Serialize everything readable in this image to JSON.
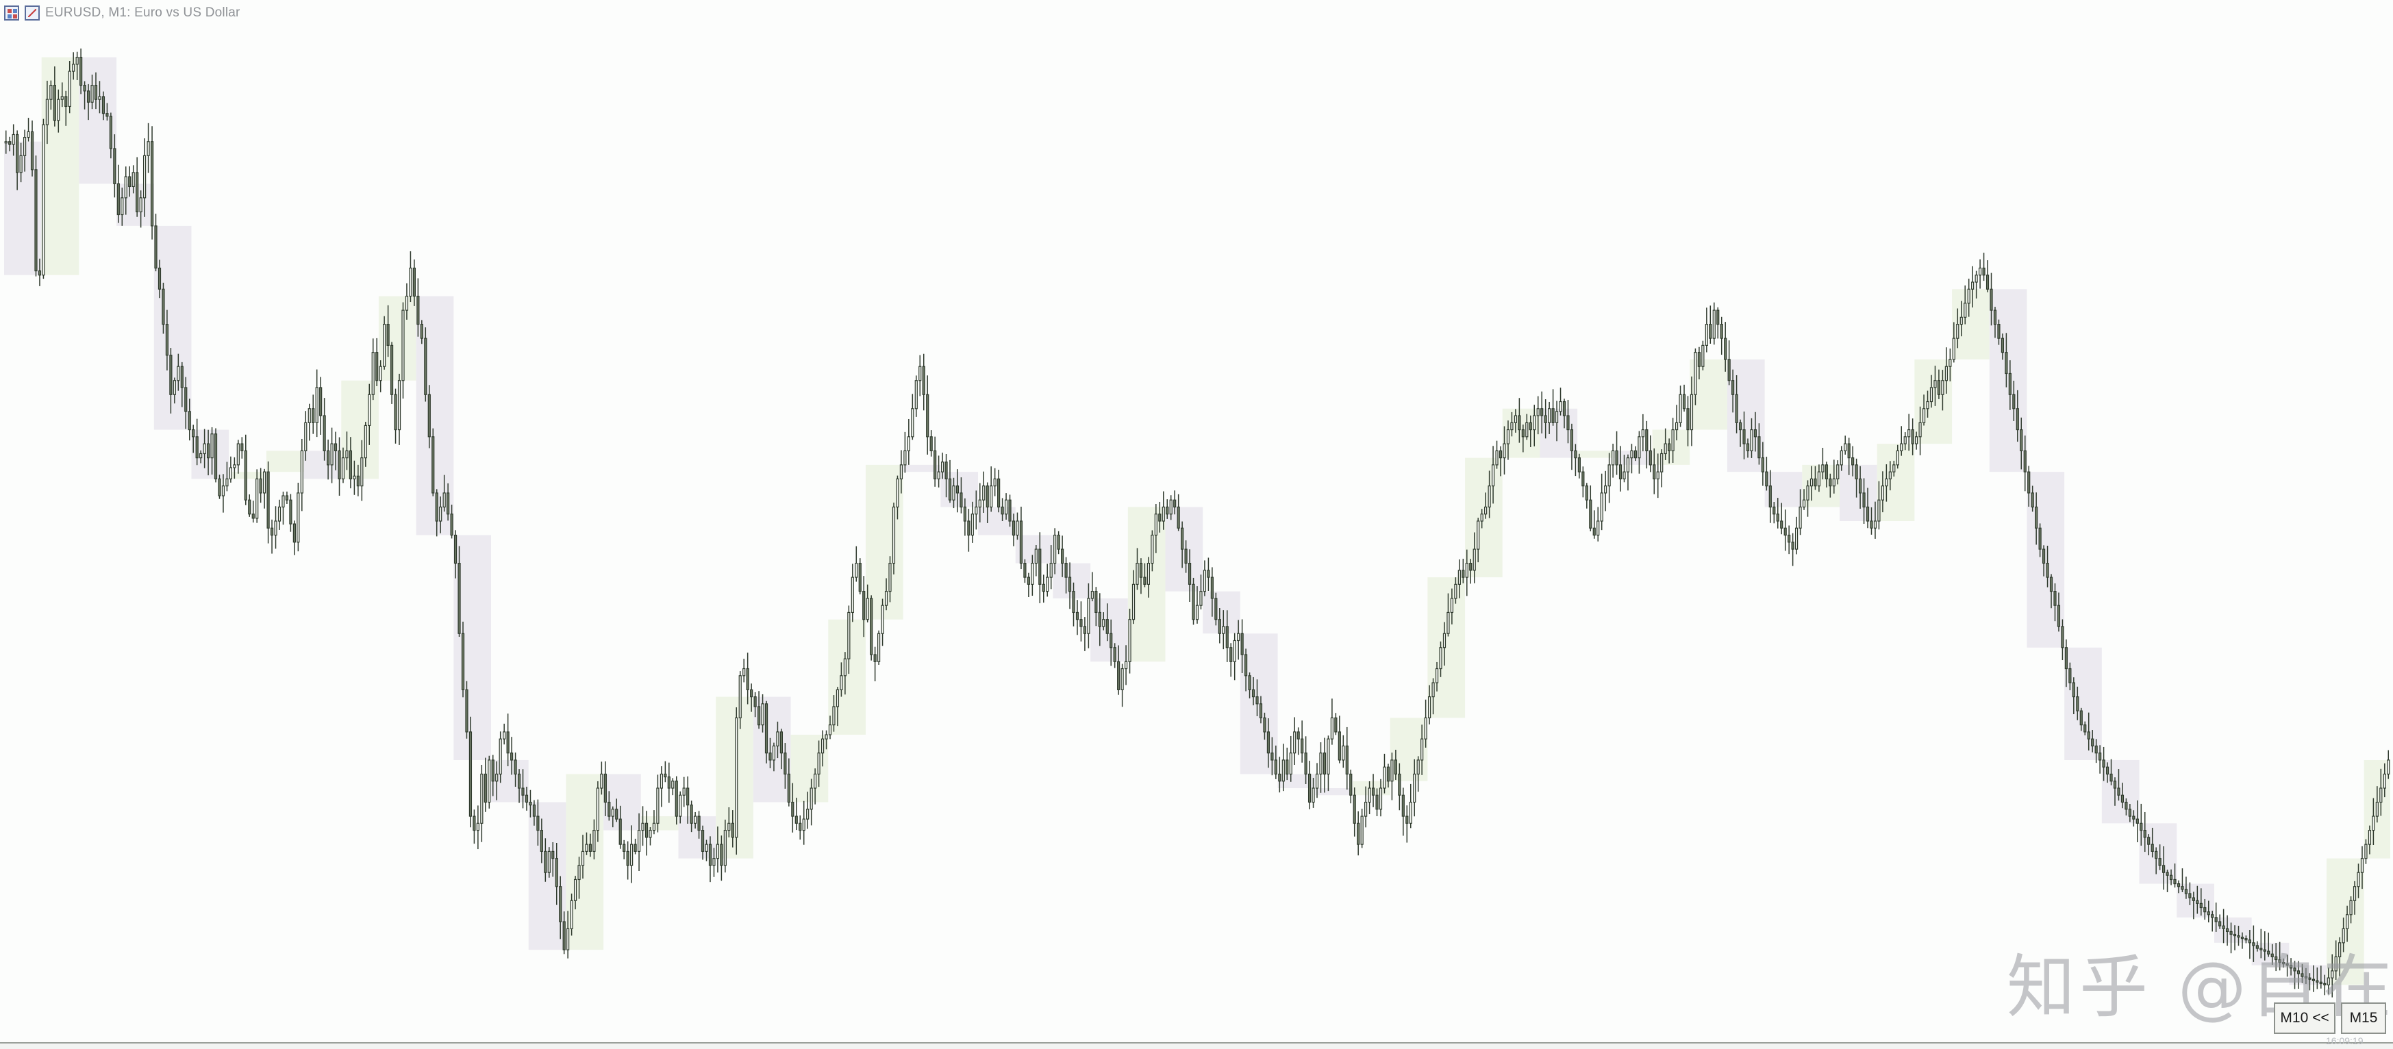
{
  "window": {
    "title": "EURUSD, M1:  Euro vs US Dollar",
    "icons": [
      "grid-icon",
      "chart-type-icon"
    ]
  },
  "toolbar": {
    "m10_label": "M10 <<",
    "m15_label": "M15"
  },
  "watermark": {
    "text": "知乎 @自在"
  },
  "corner_time": "16:09:19",
  "colors": {
    "background": "#fcfdfc",
    "candle_body": "#6e7a66",
    "candle_wick": "#2f3a2d",
    "bull_box": "#eef4e6",
    "bear_box": "#eceaf0"
  },
  "chart_data": {
    "type": "candlestick",
    "symbol": "EURUSD",
    "timeframe": "M1",
    "overlay_boxes_timeframe": "M10",
    "y_scale": "price (relative)",
    "closes": [
      600,
      598,
      605,
      578,
      590,
      603,
      607,
      580,
      508,
      505,
      612,
      630,
      640,
      615,
      630,
      632,
      625,
      650,
      655,
      660,
      640,
      636,
      628,
      640,
      630,
      632,
      620,
      618,
      595,
      570,
      548,
      560,
      575,
      568,
      578,
      550,
      560,
      590,
      600,
      540,
      510,
      495,
      470,
      448,
      420,
      430,
      440,
      425,
      408,
      395,
      390,
      375,
      378,
      385,
      375,
      392,
      360,
      348,
      355,
      360,
      368,
      370,
      385,
      380,
      345,
      335,
      332,
      360,
      350,
      365,
      325,
      320,
      330,
      340,
      348,
      345,
      328,
      315,
      350,
      380,
      400,
      410,
      400,
      425,
      405,
      380,
      370,
      385,
      380,
      360,
      375,
      380,
      360,
      362,
      355,
      375,
      398,
      420,
      450,
      430,
      440,
      470,
      455,
      420,
      395,
      430,
      480,
      490,
      510,
      490,
      470,
      460,
      420,
      390,
      350,
      330,
      340,
      350,
      335,
      320,
      300,
      250,
      210,
      180,
      120,
      110,
      115,
      150,
      130,
      160,
      145,
      150,
      175,
      180,
      165,
      160,
      150,
      140,
      135,
      130,
      128,
      120,
      110,
      95,
      80,
      95,
      90,
      70,
      45,
      25,
      40,
      60,
      75,
      85,
      95,
      100,
      95,
      110,
      140,
      150,
      130,
      120,
      125,
      118,
      100,
      95,
      85,
      100,
      95,
      110,
      115,
      105,
      110,
      115,
      140,
      150,
      148,
      140,
      145,
      120,
      135,
      140,
      128,
      115,
      120,
      110,
      95,
      100,
      85,
      90,
      100,
      85,
      110,
      115,
      105,
      190,
      220,
      225,
      210,
      205,
      198,
      185,
      200,
      165,
      160,
      170,
      180,
      165,
      150,
      130,
      120,
      115,
      110,
      118,
      125,
      140,
      150,
      165,
      175,
      178,
      185,
      198,
      210,
      220,
      232,
      265,
      290,
      300,
      280,
      260,
      275,
      235,
      230,
      250,
      270,
      280,
      300,
      340,
      360,
      370,
      380,
      390,
      410,
      430,
      440,
      420,
      390,
      380,
      360,
      365,
      372,
      360,
      345,
      355,
      350,
      340,
      330,
      320,
      335,
      340,
      345,
      355,
      340,
      355,
      360,
      340,
      335,
      345,
      330,
      320,
      330,
      300,
      290,
      285,
      300,
      310,
      285,
      280,
      290,
      300,
      320,
      310,
      300,
      290,
      280,
      265,
      260,
      255,
      250,
      275,
      280,
      265,
      255,
      260,
      250,
      240,
      230,
      210,
      225,
      230,
      260,
      285,
      300,
      290,
      285,
      300,
      320,
      335,
      330,
      340,
      335,
      345,
      340,
      325,
      310,
      300,
      285,
      260,
      270,
      280,
      295,
      290,
      275,
      260,
      250,
      255,
      240,
      230,
      245,
      250,
      235,
      220,
      210,
      205,
      200,
      190,
      180,
      165,
      160,
      150,
      145,
      160,
      150,
      165,
      180,
      175,
      165,
      150,
      130,
      140,
      150,
      165,
      150,
      175,
      190,
      180,
      160,
      170,
      150,
      135,
      115,
      100,
      120,
      130,
      140,
      135,
      125,
      140,
      155,
      145,
      160,
      150,
      135,
      120,
      115,
      130,
      150,
      160,
      175,
      190,
      205,
      215,
      225,
      240,
      250,
      265,
      275,
      285,
      295,
      290,
      300,
      295,
      310,
      330,
      335,
      340,
      355,
      370,
      380,
      375,
      385,
      395,
      400,
      405,
      395,
      390,
      400,
      395,
      405,
      410,
      405,
      400,
      410,
      400,
      408,
      415,
      405,
      395,
      380,
      375,
      365,
      355,
      345,
      325,
      320,
      330,
      350,
      355,
      370,
      380,
      370,
      360,
      365,
      375,
      380,
      375,
      390,
      395,
      380,
      370,
      360,
      365,
      378,
      385,
      380,
      395,
      400,
      420,
      410,
      395,
      420,
      450,
      440,
      455,
      470,
      460,
      480,
      470,
      460,
      445,
      430,
      420,
      400,
      395,
      385,
      380,
      395,
      390,
      375,
      365,
      355,
      340,
      335,
      330,
      325,
      320,
      315,
      310,
      325,
      340,
      345,
      355,
      360,
      355,
      365,
      370,
      360,
      355,
      360,
      370,
      380,
      385,
      375,
      370,
      360,
      350,
      340,
      330,
      325,
      330,
      345,
      355,
      360,
      365,
      370,
      380,
      385,
      390,
      395,
      385,
      390,
      400,
      410,
      415,
      425,
      430,
      420,
      430,
      440,
      445,
      460,
      470,
      475,
      485,
      495,
      500,
      505,
      510,
      505,
      495,
      480,
      470,
      460,
      450,
      435,
      420,
      410,
      395,
      380,
      365,
      350,
      340,
      325,
      310,
      300,
      290,
      280,
      270,
      255,
      240,
      225,
      215,
      205,
      195,
      185,
      180,
      175,
      170,
      165,
      160,
      155,
      150,
      145,
      140,
      135,
      130,
      125,
      120,
      118,
      115,
      110,
      105,
      100,
      95,
      90,
      85,
      80,
      78,
      75,
      72,
      70,
      68,
      65,
      62,
      60,
      58,
      55,
      52,
      50,
      48,
      45,
      42,
      40,
      38,
      36,
      35,
      34,
      33,
      32,
      30,
      28,
      26,
      25,
      24,
      22,
      20,
      18,
      16,
      15,
      14,
      12,
      10,
      8,
      6,
      5,
      4,
      3,
      2,
      1,
      0,
      5,
      10,
      20,
      30,
      40,
      50,
      60,
      70,
      80,
      90,
      100,
      110,
      120,
      130,
      140,
      150,
      160
    ]
  }
}
